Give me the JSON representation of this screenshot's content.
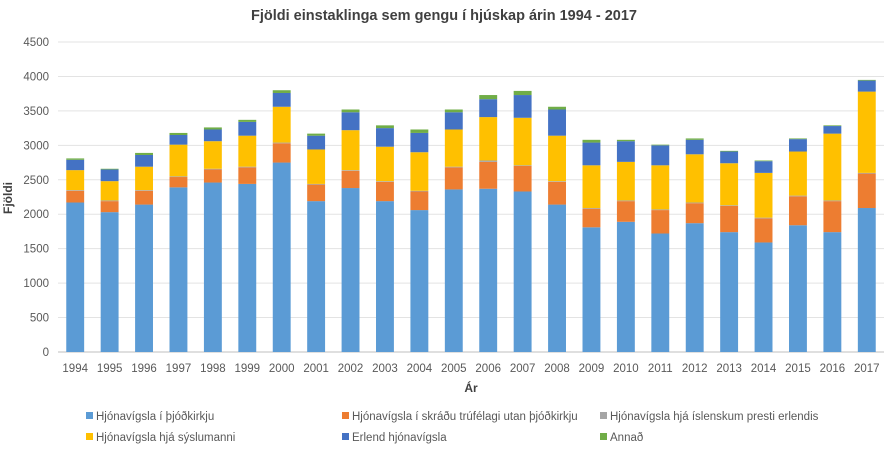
{
  "chart_data": {
    "type": "bar",
    "stacked": true,
    "title": "Fjöldi einstaklinga sem gengu í hjúskap árin 1994 - 2017",
    "xlabel": "Ár",
    "ylabel": "Fjöldi",
    "ylim": [
      0,
      4500
    ],
    "yticks": [
      0,
      500,
      1000,
      1500,
      2000,
      2500,
      3000,
      3500,
      4000,
      4500
    ],
    "grid": true,
    "legend_position": "bottom",
    "categories": [
      "1994",
      "1995",
      "1996",
      "1997",
      "1998",
      "1999",
      "2000",
      "2001",
      "2002",
      "2003",
      "2004",
      "2005",
      "2006",
      "2007",
      "2008",
      "2009",
      "2010",
      "2011",
      "2012",
      "2013",
      "2014",
      "2015",
      "2016",
      "2017"
    ],
    "series": [
      {
        "name": "Hjónavígsla í þjóðkirkju",
        "color": "#5b9bd5",
        "values": [
          2170,
          2030,
          2140,
          2390,
          2460,
          2440,
          2750,
          2190,
          2380,
          2190,
          2060,
          2360,
          2370,
          2330,
          2140,
          1810,
          1890,
          1720,
          1870,
          1740,
          1590,
          1840,
          1740,
          2090
        ]
      },
      {
        "name": "Hjónavígsla í skráðu trúfélagi utan þjóðkirkju",
        "color": "#ed7d31",
        "values": [
          170,
          160,
          200,
          150,
          190,
          240,
          280,
          240,
          250,
          280,
          270,
          320,
          390,
          370,
          330,
          270,
          300,
          340,
          290,
          380,
          350,
          420,
          450,
          500
        ]
      },
      {
        "name": "Hjónavígsla hjá íslenskum presti erlendis",
        "color": "#a5a5a5",
        "values": [
          10,
          10,
          10,
          10,
          10,
          10,
          10,
          10,
          10,
          10,
          10,
          10,
          20,
          10,
          10,
          10,
          10,
          10,
          10,
          10,
          10,
          10,
          10,
          10
        ]
      },
      {
        "name": "Hjónavígsla hjá sýslumanni",
        "color": "#ffc000",
        "values": [
          290,
          280,
          340,
          460,
          400,
          450,
          520,
          500,
          580,
          500,
          560,
          540,
          630,
          690,
          660,
          620,
          560,
          640,
          700,
          610,
          650,
          640,
          970,
          1180
        ]
      },
      {
        "name": "Erlend hjónavígsla",
        "color": "#4472c4",
        "values": [
          150,
          170,
          170,
          140,
          170,
          200,
          200,
          200,
          260,
          270,
          280,
          250,
          260,
          330,
          380,
          330,
          300,
          290,
          210,
          170,
          170,
          180,
          110,
          160
        ]
      },
      {
        "name": "Annað",
        "color": "#70ad47",
        "values": [
          20,
          10,
          30,
          30,
          30,
          30,
          40,
          30,
          40,
          40,
          50,
          40,
          60,
          60,
          40,
          40,
          20,
          10,
          20,
          10,
          10,
          10,
          10,
          10
        ]
      }
    ]
  }
}
